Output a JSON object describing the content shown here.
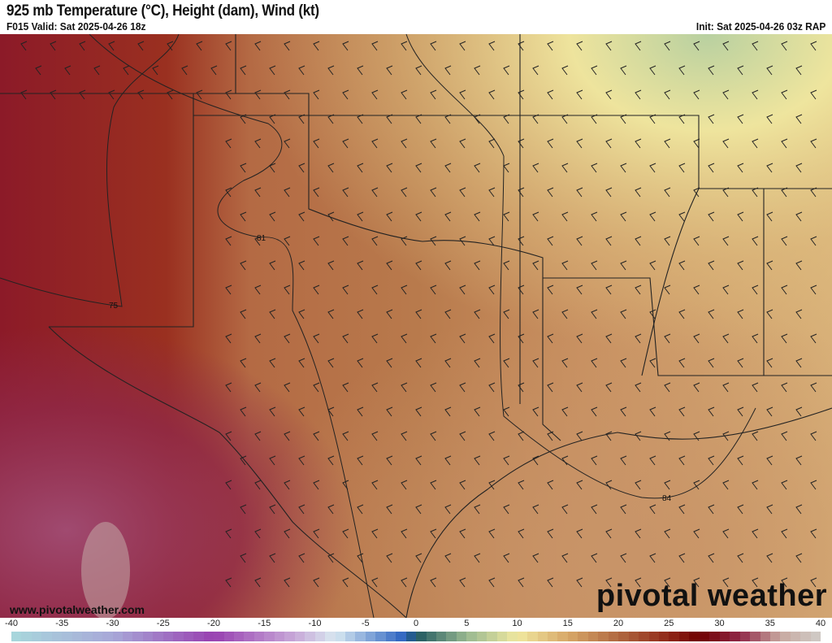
{
  "header": {
    "title": "925 mb Temperature (°C), Height (dam), Wind (kt)",
    "valid": "F015 Valid: Sat 2025-04-26 18z",
    "init": "Init: Sat 2025-04-26 03z RAP"
  },
  "map": {
    "contour_labels": [
      "81",
      "75",
      "84"
    ],
    "website": "www.pivotalweather.com",
    "brand": "pivotal weather"
  },
  "colorbar": {
    "ticks": [
      "-40",
      "-35",
      "-30",
      "-25",
      "-20",
      "-15",
      "-10",
      "-5",
      "0",
      "5",
      "10",
      "15",
      "20",
      "25",
      "30",
      "35",
      "40"
    ],
    "range": [
      -40,
      40
    ],
    "stops": [
      {
        "value": -40,
        "color": "#a8d8dc"
      },
      {
        "value": -30,
        "color": "#a8a8d8"
      },
      {
        "value": -20,
        "color": "#9840b0"
      },
      {
        "value": -12,
        "color": "#c8a8d8"
      },
      {
        "value": -8,
        "color": "#d8e8f0"
      },
      {
        "value": -1,
        "color": "#2860c0"
      },
      {
        "value": 0,
        "color": "#205860"
      },
      {
        "value": 5,
        "color": "#98b890"
      },
      {
        "value": 10,
        "color": "#f0e8a0"
      },
      {
        "value": 15,
        "color": "#d8a868"
      },
      {
        "value": 20,
        "color": "#b06840"
      },
      {
        "value": 25,
        "color": "#902818"
      },
      {
        "value": 28,
        "color": "#700000"
      },
      {
        "value": 32,
        "color": "#902848"
      },
      {
        "value": 36,
        "color": "#c8a8a0"
      },
      {
        "value": 40,
        "color": "#d0ccc8"
      }
    ]
  }
}
